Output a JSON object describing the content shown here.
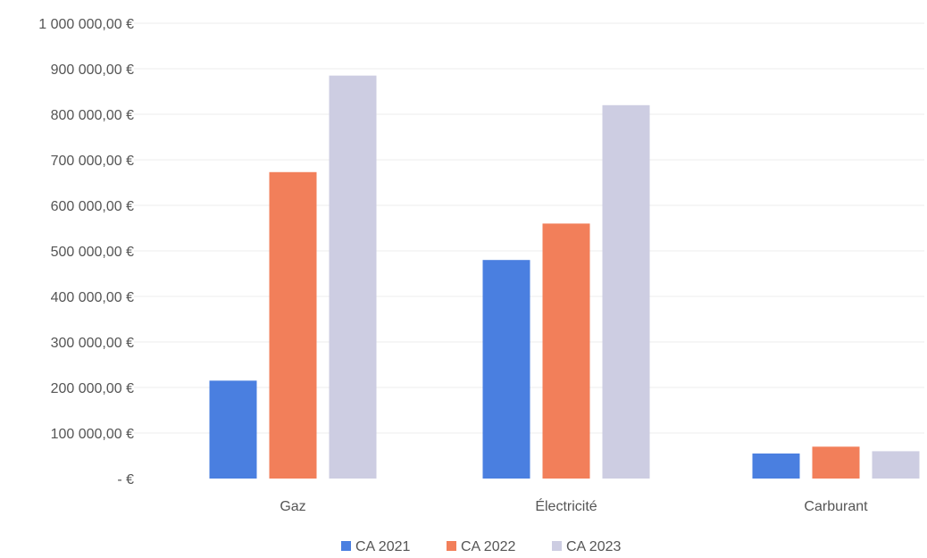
{
  "chart_data": {
    "type": "bar",
    "categories": [
      "Gaz",
      "Électricité",
      "Carburant"
    ],
    "series": [
      {
        "name": "CA 2021",
        "values": [
          215000,
          480000,
          55000
        ],
        "color": "#4a7fe0"
      },
      {
        "name": "CA 2022",
        "values": [
          673000,
          560000,
          70000
        ],
        "color": "#f27f5a"
      },
      {
        "name": "CA 2023",
        "values": [
          885000,
          820000,
          60000
        ],
        "color": "#cdcde2"
      }
    ],
    "ylim": [
      0,
      1000000
    ],
    "yticks": [
      0,
      100000,
      200000,
      300000,
      400000,
      500000,
      600000,
      700000,
      800000,
      900000,
      1000000
    ],
    "ytick_labels": [
      "-   €",
      "100 000,00 €",
      "200 000,00 €",
      "300 000,00 €",
      "400 000,00 €",
      "500 000,00 €",
      "600 000,00 €",
      "700 000,00 €",
      "800 000,00 €",
      "900 000,00 €",
      "1 000 000,00 €"
    ],
    "legend_position": "bottom",
    "grid": true,
    "grid_color": "#ececec",
    "text_color": "#555555"
  }
}
